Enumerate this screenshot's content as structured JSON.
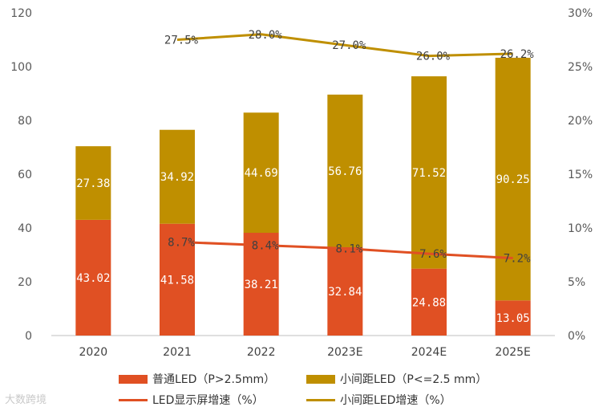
{
  "chart_data": {
    "type": "bar",
    "categories": [
      "2020",
      "2021",
      "2022",
      "2023E",
      "2024E",
      "2025E"
    ],
    "stacked": true,
    "series": [
      {
        "name": "普通LED（P>2.5mm）",
        "values": [
          43.02,
          41.58,
          38.21,
          32.84,
          24.88,
          13.05
        ],
        "color": "#e05023"
      },
      {
        "name": "小间距LED（P<=2.5 mm）",
        "values": [
          27.38,
          34.92,
          44.69,
          56.76,
          71.52,
          90.25
        ],
        "color": "#bf8f00"
      }
    ],
    "lines": [
      {
        "name": "LED显示屏增速（%）",
        "axis": "right",
        "values": [
          null,
          8.7,
          8.4,
          8.1,
          7.6,
          7.2
        ],
        "labels": [
          "",
          "8.7%",
          "8.4%",
          "8.1%",
          "7.6%",
          "7.2%"
        ],
        "color": "#e05023"
      },
      {
        "name": "小间距LED增速（%）",
        "axis": "right",
        "values": [
          null,
          27.5,
          28.0,
          27.0,
          26.0,
          26.2
        ],
        "labels": [
          "",
          "27.5%",
          "28.0%",
          "27.0%",
          "26.0%",
          "26.2%"
        ],
        "color": "#bf8f00"
      }
    ],
    "ylim": [
      0,
      120
    ],
    "yticks": [
      "0",
      "20",
      "40",
      "60",
      "80",
      "100",
      "120"
    ],
    "y2lim": [
      0,
      30
    ],
    "y2ticks": [
      "0%",
      "5%",
      "10%",
      "15%",
      "20%",
      "25%",
      "30%"
    ],
    "grid": false,
    "legend_position": "bottom"
  },
  "watermark": "大数跨境"
}
